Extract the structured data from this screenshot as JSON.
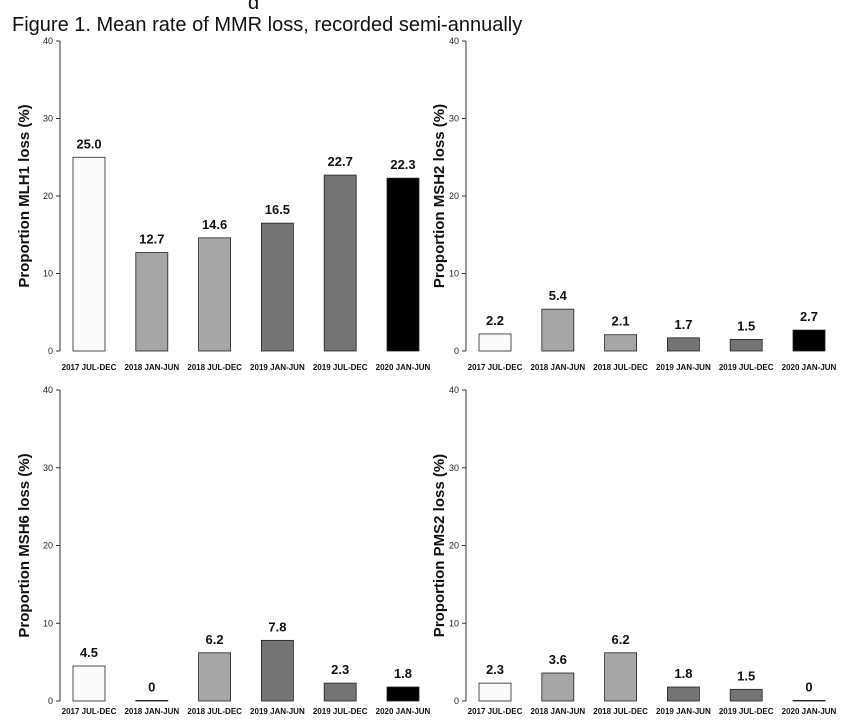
{
  "page": {
    "title": "Figure 1. Mean rate of MMR loss, recorded semi-annually",
    "top_cut_fragment": "g"
  },
  "chart_data": [
    {
      "type": "bar",
      "ylabel": "Proportion MLH1 loss (%)",
      "ylim": [
        0,
        40
      ],
      "yticks": [
        0,
        10,
        20,
        30,
        40
      ],
      "grid": false,
      "categories": [
        "2017 JUL-DEC",
        "2018 JAN-JUN",
        "2018 JUL-DEC",
        "2019 JAN-JUN",
        "2019 JUL-DEC",
        "2020 JAN-JUN"
      ],
      "values": [
        25.0,
        12.7,
        14.6,
        16.5,
        22.7,
        22.3
      ],
      "value_labels": [
        "25.0",
        "12.7",
        "14.6",
        "16.5",
        "22.7",
        "22.3"
      ],
      "colors": [
        "#fafafa",
        "#a6a6a6",
        "#a6a6a6",
        "#747474",
        "#747474",
        "#000000"
      ]
    },
    {
      "type": "bar",
      "ylabel": "Proportion MSH2 loss (%)",
      "ylim": [
        0,
        40
      ],
      "yticks": [
        0,
        10,
        20,
        30,
        40
      ],
      "grid": false,
      "categories": [
        "2017 JUL-DEC",
        "2018 JAN-JUN",
        "2018 JUL-DEC",
        "2019 JAN-JUN",
        "2019 JUL-DEC",
        "2020 JAN-JUN"
      ],
      "values": [
        2.2,
        5.4,
        2.1,
        1.7,
        1.5,
        2.7
      ],
      "value_labels": [
        "2.2",
        "5.4",
        "2.1",
        "1.7",
        "1.5",
        "2.7"
      ],
      "colors": [
        "#fafafa",
        "#a6a6a6",
        "#a6a6a6",
        "#747474",
        "#747474",
        "#000000"
      ]
    },
    {
      "type": "bar",
      "ylabel": "Proportion MSH6 loss (%)",
      "ylim": [
        0,
        40
      ],
      "yticks": [
        0,
        10,
        20,
        30,
        40
      ],
      "grid": false,
      "categories": [
        "2017 JUL-DEC",
        "2018 JAN-JUN",
        "2018 JUL-DEC",
        "2019 JAN-JUN",
        "2019 JUL-DEC",
        "2020 JAN-JUN"
      ],
      "values": [
        4.5,
        0,
        6.2,
        7.8,
        2.3,
        1.8
      ],
      "value_labels": [
        "4.5",
        "0",
        "6.2",
        "7.8",
        "2.3",
        "1.8"
      ],
      "colors": [
        "#fafafa",
        "#a6a6a6",
        "#a6a6a6",
        "#747474",
        "#747474",
        "#000000"
      ]
    },
    {
      "type": "bar",
      "ylabel": "Proportion PMS2 loss (%)",
      "ylim": [
        0,
        40
      ],
      "yticks": [
        0,
        10,
        20,
        30,
        40
      ],
      "grid": false,
      "categories": [
        "2017 JUL-DEC",
        "2018 JAN-JUN",
        "2018 JUL-DEC",
        "2019 JAN-JUN",
        "2019 JUL-DEC",
        "2020 JAN-JUN"
      ],
      "values": [
        2.3,
        3.6,
        6.2,
        1.8,
        1.5,
        0
      ],
      "value_labels": [
        "2.3",
        "3.6",
        "6.2",
        "1.8",
        "1.5",
        "0"
      ],
      "colors": [
        "#fafafa",
        "#a6a6a6",
        "#a6a6a6",
        "#747474",
        "#747474",
        "#000000"
      ]
    }
  ]
}
